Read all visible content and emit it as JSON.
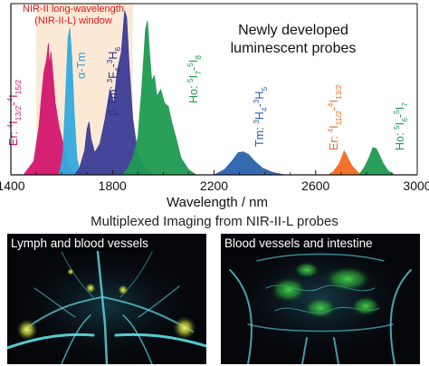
{
  "chart_data": {
    "type": "area",
    "xlabel": "Wavelength / nm",
    "ylabel": "",
    "xlim": [
      1400,
      3000
    ],
    "ylim": [
      0,
      1
    ],
    "x_ticks": [
      "1400",
      "1800",
      "2200",
      "2600",
      "3000"
    ],
    "x_tick_values": [
      1400,
      1800,
      2200,
      2600,
      3000
    ],
    "x_minor_ticks": [
      1500,
      1600,
      1700,
      1900,
      2000,
      2100,
      2300,
      2400,
      2500,
      2700,
      2800,
      2900
    ],
    "window": {
      "label_line1": "NIR-II long-wavelength",
      "label_line2": "(NIR-II-L) window",
      "x_start": 1500,
      "x_end": 1880,
      "color": "#fbe9d6"
    },
    "heading": {
      "line1": "Newly developed",
      "line2": "luminescent probes"
    },
    "series": [
      {
        "name": "Er: 4I13/2-4I15/2",
        "color": "#d3166f",
        "text_color": "#d3166f",
        "points": [
          [
            1450,
            0
          ],
          [
            1490,
            0.08
          ],
          [
            1510,
            0.28
          ],
          [
            1520,
            0.45
          ],
          [
            1530,
            0.6
          ],
          [
            1540,
            0.67
          ],
          [
            1548,
            0.77
          ],
          [
            1552,
            0.64
          ],
          [
            1558,
            0.72
          ],
          [
            1565,
            0.6
          ],
          [
            1575,
            0.42
          ],
          [
            1590,
            0.28
          ],
          [
            1610,
            0.16
          ],
          [
            1625,
            0.06
          ],
          [
            1660,
            0
          ]
        ]
      },
      {
        "name": "α-Tm",
        "color": "#35aadd",
        "text_color": "#2e9fd6",
        "points": [
          [
            1590,
            0
          ],
          [
            1605,
            0.12
          ],
          [
            1615,
            0.45
          ],
          [
            1625,
            0.8
          ],
          [
            1632,
            0.86
          ],
          [
            1640,
            0.7
          ],
          [
            1650,
            0.35
          ],
          [
            1660,
            0.1
          ],
          [
            1675,
            0
          ]
        ]
      },
      {
        "name": "β-Tm: 3F4-3H6",
        "color": "#3b3c96",
        "text_color": "#2f3189",
        "points": [
          [
            1650,
            0
          ],
          [
            1670,
            0.04
          ],
          [
            1690,
            0.14
          ],
          [
            1700,
            0.27
          ],
          [
            1708,
            0.31
          ],
          [
            1716,
            0.21
          ],
          [
            1730,
            0.13
          ],
          [
            1750,
            0.18
          ],
          [
            1770,
            0.32
          ],
          [
            1790,
            0.5
          ],
          [
            1805,
            0.42
          ],
          [
            1818,
            0.6
          ],
          [
            1835,
            0.72
          ],
          [
            1848,
            0.96
          ],
          [
            1856,
            0.92
          ],
          [
            1866,
            0.64
          ],
          [
            1880,
            0.33
          ],
          [
            1900,
            0.12
          ],
          [
            1930,
            0.03
          ],
          [
            1960,
            0
          ]
        ]
      },
      {
        "name": "Ho: 5I7-5I8",
        "color": "#1f9a50",
        "text_color": "#1f9a50",
        "points": [
          [
            1840,
            0
          ],
          [
            1860,
            0.04
          ],
          [
            1880,
            0.1
          ],
          [
            1900,
            0.22
          ],
          [
            1915,
            0.5
          ],
          [
            1930,
            0.85
          ],
          [
            1938,
            0.9
          ],
          [
            1946,
            0.72
          ],
          [
            1955,
            0.55
          ],
          [
            1965,
            0.58
          ],
          [
            1975,
            0.46
          ],
          [
            1990,
            0.5
          ],
          [
            2005,
            0.42
          ],
          [
            2020,
            0.4
          ],
          [
            2035,
            0.3
          ],
          [
            2050,
            0.22
          ],
          [
            2070,
            0.1
          ],
          [
            2100,
            0.03
          ],
          [
            2130,
            0
          ]
        ]
      },
      {
        "name": "Tm: 3H4-3H5",
        "color": "#2a62ad",
        "text_color": "#2a62ad",
        "points": [
          [
            2200,
            0
          ],
          [
            2240,
            0.03
          ],
          [
            2270,
            0.08
          ],
          [
            2295,
            0.13
          ],
          [
            2315,
            0.135
          ],
          [
            2335,
            0.12
          ],
          [
            2360,
            0.08
          ],
          [
            2390,
            0.04
          ],
          [
            2430,
            0.015
          ],
          [
            2480,
            0
          ]
        ]
      },
      {
        "name": "Er: 4I11/2-4I13/2",
        "color": "#f26c21",
        "text_color": "#f26c21",
        "points": [
          [
            2650,
            0
          ],
          [
            2670,
            0.02
          ],
          [
            2690,
            0.06
          ],
          [
            2705,
            0.11
          ],
          [
            2712,
            0.14
          ],
          [
            2720,
            0.12
          ],
          [
            2730,
            0.09
          ],
          [
            2745,
            0.05
          ],
          [
            2770,
            0.01
          ],
          [
            2790,
            0
          ]
        ]
      },
      {
        "name": "Ho: 5I6-5I7",
        "color": "#1f9a50",
        "text_color": "#1f9a50",
        "points": [
          [
            2770,
            0
          ],
          [
            2790,
            0.04
          ],
          [
            2810,
            0.1
          ],
          [
            2825,
            0.16
          ],
          [
            2838,
            0.155
          ],
          [
            2850,
            0.12
          ],
          [
            2865,
            0.07
          ],
          [
            2885,
            0.025
          ],
          [
            2910,
            0
          ]
        ]
      }
    ]
  },
  "series_labels": {
    "er_1550": {
      "main": "Er: ",
      "s1": "4",
      "i1": "I",
      "sub1": "13/2",
      "dash": "-",
      "s2": "4",
      "i2": "I",
      "sub2": "15/2"
    },
    "alpha_tm": {
      "main": "α-Tm"
    },
    "beta_tm": {
      "main": "β-Tm: ",
      "s1": "3",
      "i1": "F",
      "sub1": "4",
      "dash": "-",
      "s2": "3",
      "i2": "H",
      "sub2": "6"
    },
    "ho_2000": {
      "main": "Ho: ",
      "s1": "5",
      "i1": "I",
      "sub1": "7",
      "dash": "-",
      "s2": "5",
      "i2": "I",
      "sub2": "8"
    },
    "tm_2300": {
      "main": "Tm: ",
      "s1": "3",
      "i1": "H",
      "sub1": "4",
      "dash": "-",
      "s2": "3",
      "i2": "H",
      "sub2": "5"
    },
    "er_2700": {
      "main": "Er: ",
      "s1": "4",
      "i1": "I",
      "sub1": "11/2",
      "dash": "-",
      "s2": "4",
      "i2": "I",
      "sub2": "13/2"
    },
    "ho_2850": {
      "main": "Ho: ",
      "s1": "5",
      "i1": "I",
      "sub1": "6",
      "dash": "-",
      "s2": "5",
      "i2": "I",
      "sub2": "7"
    }
  },
  "imaging": {
    "title": "Multiplexed Imaging from NIR-II-L probes",
    "left_label": "Lymph and blood vessels",
    "right_label": "Blood vessels and intestine"
  }
}
